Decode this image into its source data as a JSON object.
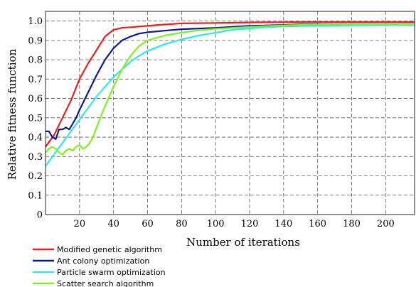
{
  "chart_data": {
    "type": "line",
    "title": "",
    "xlabel": "Number of iterations",
    "ylabel": "Relative fitness function",
    "xlim": [
      0,
      217
    ],
    "ylim": [
      0,
      1.05
    ],
    "xticks": [
      20,
      40,
      60,
      80,
      100,
      120,
      140,
      160,
      180,
      200
    ],
    "yticks": [
      0,
      0.1,
      0.2,
      0.3,
      0.4,
      0.5,
      0.6,
      0.7,
      0.8,
      0.9,
      1.0
    ],
    "xtick_labels": [
      "20",
      "40",
      "60",
      "80",
      "100",
      "120",
      "140",
      "160",
      "180",
      "200"
    ],
    "ytick_labels": [
      "0",
      "0.1",
      "0.2",
      "0.3",
      "0.4",
      "0.5",
      "0.6",
      "0.7",
      "0.8",
      "0.9",
      "1.0"
    ],
    "grid": true,
    "legend_position": "bottom-left",
    "series": [
      {
        "name": "Modified genetic algorithm",
        "color": "#ee1c1c",
        "points": [
          [
            0,
            0.35
          ],
          [
            5,
            0.41
          ],
          [
            10,
            0.5
          ],
          [
            15,
            0.59
          ],
          [
            20,
            0.7
          ],
          [
            25,
            0.78
          ],
          [
            30,
            0.85
          ],
          [
            35,
            0.92
          ],
          [
            40,
            0.955
          ],
          [
            45,
            0.965
          ],
          [
            50,
            0.968
          ],
          [
            60,
            0.975
          ],
          [
            70,
            0.982
          ],
          [
            80,
            0.988
          ],
          [
            100,
            0.99
          ],
          [
            120,
            0.993
          ],
          [
            150,
            0.995
          ],
          [
            180,
            0.995
          ],
          [
            217,
            0.995
          ]
        ]
      },
      {
        "name": "Ant colony optimization",
        "color": "#0a1a8c",
        "points": [
          [
            0,
            0.43
          ],
          [
            2,
            0.43
          ],
          [
            4,
            0.4
          ],
          [
            6,
            0.39
          ],
          [
            8,
            0.44
          ],
          [
            10,
            0.44
          ],
          [
            12,
            0.45
          ],
          [
            14,
            0.44
          ],
          [
            16,
            0.47
          ],
          [
            18,
            0.5
          ],
          [
            20,
            0.54
          ],
          [
            25,
            0.63
          ],
          [
            30,
            0.72
          ],
          [
            35,
            0.8
          ],
          [
            40,
            0.86
          ],
          [
            45,
            0.9
          ],
          [
            50,
            0.92
          ],
          [
            55,
            0.935
          ],
          [
            60,
            0.942
          ],
          [
            70,
            0.95
          ],
          [
            80,
            0.958
          ],
          [
            100,
            0.965
          ],
          [
            120,
            0.975
          ],
          [
            140,
            0.98
          ],
          [
            150,
            0.983
          ],
          [
            180,
            0.985
          ],
          [
            217,
            0.985
          ]
        ]
      },
      {
        "name": "Particle swarm optimization",
        "color": "#33e3f0",
        "points": [
          [
            0,
            0.25
          ],
          [
            5,
            0.31
          ],
          [
            10,
            0.37
          ],
          [
            15,
            0.43
          ],
          [
            20,
            0.49
          ],
          [
            25,
            0.55
          ],
          [
            30,
            0.61
          ],
          [
            35,
            0.66
          ],
          [
            40,
            0.71
          ],
          [
            45,
            0.75
          ],
          [
            50,
            0.79
          ],
          [
            55,
            0.82
          ],
          [
            60,
            0.845
          ],
          [
            70,
            0.88
          ],
          [
            80,
            0.905
          ],
          [
            90,
            0.925
          ],
          [
            100,
            0.94
          ],
          [
            110,
            0.955
          ],
          [
            120,
            0.962
          ],
          [
            130,
            0.968
          ],
          [
            140,
            0.972
          ],
          [
            160,
            0.976
          ],
          [
            180,
            0.978
          ],
          [
            217,
            0.98
          ]
        ]
      },
      {
        "name": "Scatter search algorithm",
        "color": "#7fef1f",
        "points": [
          [
            0,
            0.32
          ],
          [
            2,
            0.34
          ],
          [
            4,
            0.35
          ],
          [
            6,
            0.34
          ],
          [
            8,
            0.32
          ],
          [
            10,
            0.31
          ],
          [
            12,
            0.33
          ],
          [
            14,
            0.34
          ],
          [
            16,
            0.33
          ],
          [
            18,
            0.35
          ],
          [
            20,
            0.36
          ],
          [
            22,
            0.34
          ],
          [
            24,
            0.35
          ],
          [
            26,
            0.37
          ],
          [
            28,
            0.4
          ],
          [
            30,
            0.45
          ],
          [
            35,
            0.56
          ],
          [
            40,
            0.66
          ],
          [
            45,
            0.75
          ],
          [
            50,
            0.82
          ],
          [
            55,
            0.87
          ],
          [
            60,
            0.9
          ],
          [
            70,
            0.925
          ],
          [
            80,
            0.94
          ],
          [
            90,
            0.952
          ],
          [
            100,
            0.96
          ],
          [
            110,
            0.965
          ],
          [
            120,
            0.97
          ],
          [
            140,
            0.978
          ],
          [
            160,
            0.982
          ],
          [
            180,
            0.985
          ],
          [
            217,
            0.985
          ]
        ]
      }
    ]
  }
}
